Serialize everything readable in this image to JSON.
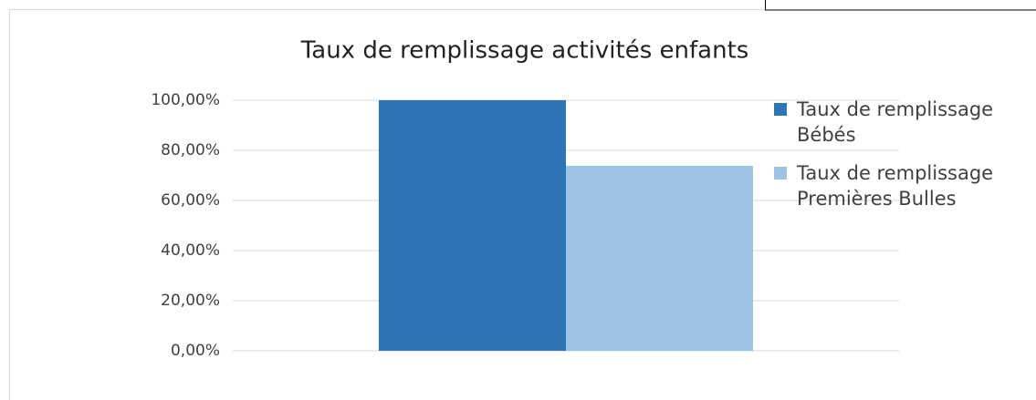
{
  "chart_data": {
    "type": "bar",
    "title": "Taux de remplissage activités enfants",
    "categories": [
      null
    ],
    "series": [
      {
        "name": "Taux de remplissage Bébés",
        "color": "#2e75b6",
        "values": [
          100
        ]
      },
      {
        "name": "Taux de remplissage Premières Bulles",
        "color": "#9dc3e6",
        "values": [
          73.8
        ]
      }
    ],
    "ylim": [
      0,
      100
    ],
    "yticks": [
      {
        "value": 0,
        "label": "0,00%"
      },
      {
        "value": 20,
        "label": "20,00%"
      },
      {
        "value": 40,
        "label": "40,00%"
      },
      {
        "value": 60,
        "label": "60,00%"
      },
      {
        "value": 80,
        "label": "80,00%"
      },
      {
        "value": 100,
        "label": "100,00%"
      }
    ],
    "grid": true,
    "legend": "right"
  }
}
